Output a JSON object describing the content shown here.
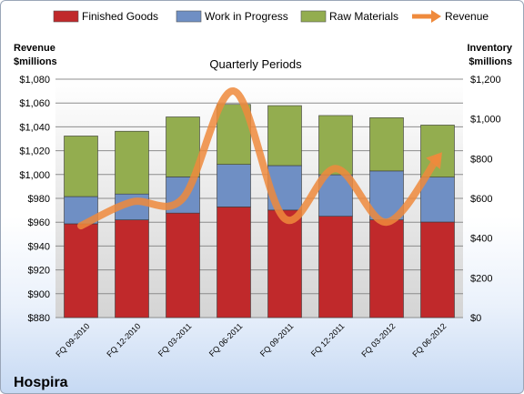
{
  "chart_data": {
    "type": "bar",
    "stacked": true,
    "subtitle": "Quarterly Periods",
    "brand": "Hospira",
    "categories": [
      "FQ 09-2010",
      "FQ 12-2010",
      "FQ 03-2011",
      "FQ 06-2011",
      "FQ 09-2011",
      "FQ 12-2011",
      "FQ 03-2012",
      "FQ 06-2012"
    ],
    "series": [
      {
        "name": "Finished Goods",
        "axis": "right",
        "color": "#c0292b",
        "values": [
          472,
          492,
          526,
          557,
          541,
          510,
          492,
          481
        ]
      },
      {
        "name": "Work in Progress",
        "axis": "right",
        "color": "#6f8fc4",
        "values": [
          137,
          130,
          182,
          214,
          224,
          209,
          246,
          226
        ]
      },
      {
        "name": "Raw Materials",
        "axis": "right",
        "color": "#93ad4f",
        "values": [
          305,
          316,
          302,
          302,
          302,
          298,
          268,
          262
        ]
      }
    ],
    "line_series": {
      "name": "Revenue",
      "axis": "left",
      "color": "#ef8a3c",
      "values": [
        957,
        977,
        980,
        1070,
        963,
        1005,
        960,
        1014
      ]
    },
    "left_axis": {
      "label_line1": "Revenue",
      "label_line2": "$millions",
      "min": 880,
      "max": 1080,
      "step": 20,
      "prefix": "$"
    },
    "right_axis": {
      "label_line1": "Inventory",
      "label_line2": "$millions",
      "min": 0,
      "max": 1200,
      "step": 200,
      "prefix": "$"
    },
    "legend_position": "top",
    "grid": true
  }
}
